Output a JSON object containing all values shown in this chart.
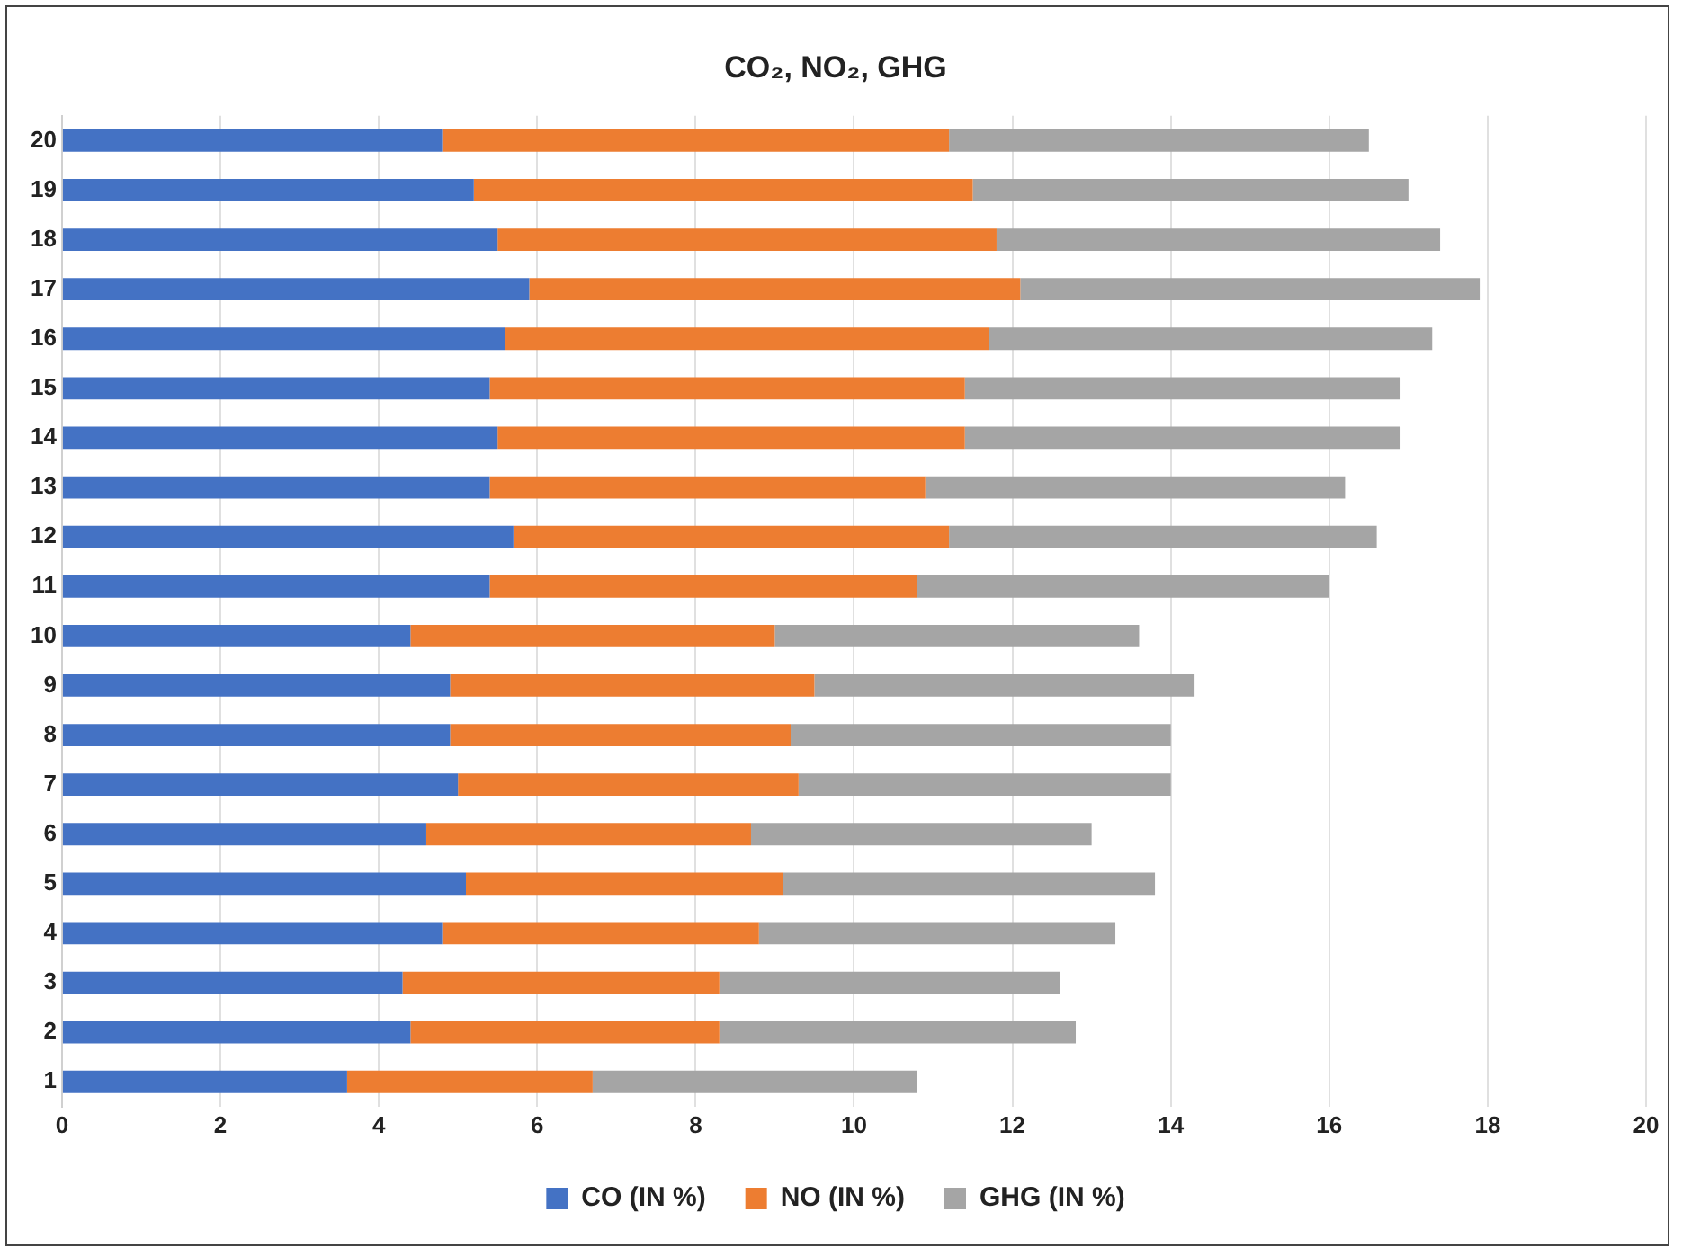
{
  "chart_data": {
    "type": "bar",
    "orientation": "horizontal",
    "stacked": true,
    "title": "CO₂, NO₂, GHG",
    "categories": [
      "20",
      "19",
      "18",
      "17",
      "16",
      "15",
      "14",
      "13",
      "12",
      "11",
      "10",
      "9",
      "8",
      "7",
      "6",
      "5",
      "4",
      "3",
      "2",
      "1"
    ],
    "series": [
      {
        "name": "CO (IN %)",
        "color": "#4472c4",
        "values": [
          4.8,
          5.2,
          5.5,
          5.9,
          5.6,
          5.4,
          5.5,
          5.4,
          5.7,
          5.4,
          4.4,
          4.9,
          4.9,
          5.0,
          4.6,
          5.1,
          4.8,
          4.3,
          4.4,
          3.6
        ]
      },
      {
        "name": "NO (IN %)",
        "color": "#ed7d31",
        "values": [
          6.4,
          6.3,
          6.3,
          6.2,
          6.1,
          6.0,
          5.9,
          5.5,
          5.5,
          5.4,
          4.6,
          4.6,
          4.3,
          4.3,
          4.1,
          4.0,
          4.0,
          4.0,
          3.9,
          3.1
        ]
      },
      {
        "name": "GHG (IN %)",
        "color": "#a5a5a5",
        "values": [
          5.3,
          5.5,
          5.6,
          5.8,
          5.6,
          5.5,
          5.5,
          5.3,
          5.4,
          5.2,
          4.6,
          4.8,
          4.8,
          4.7,
          4.3,
          4.7,
          4.5,
          4.3,
          4.5,
          4.1
        ]
      }
    ],
    "xlim": [
      0,
      20
    ],
    "xticks": [
      0,
      2,
      4,
      6,
      8,
      10,
      12,
      14,
      16,
      18,
      20
    ],
    "grid": "x",
    "legend": "bottom"
  }
}
